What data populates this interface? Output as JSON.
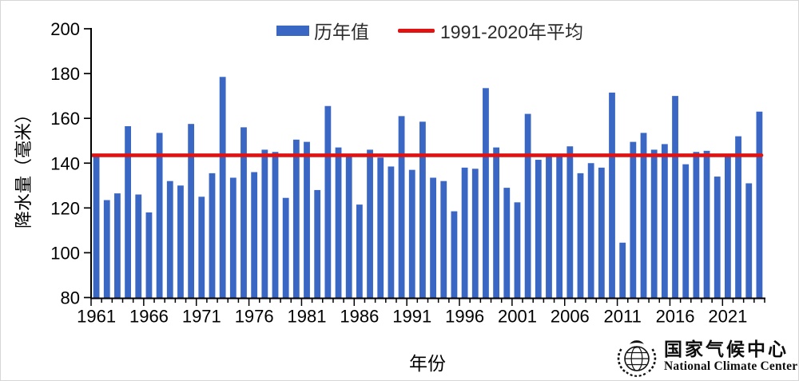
{
  "legend": {
    "series_label": "历年值",
    "average_label": "1991-2020年平均"
  },
  "footer_logo": {
    "cn": "国家气候中心",
    "en": "National Climate Center"
  },
  "chart_data": {
    "type": "bar",
    "title": "",
    "xlabel": "年份",
    "ylabel": "降水量（毫米）",
    "ylim": [
      80,
      200
    ],
    "y_ticks": [
      80,
      100,
      120,
      140,
      160,
      180,
      200
    ],
    "x_tick_label_years": [
      1961,
      1966,
      1971,
      1976,
      1981,
      1986,
      1991,
      1996,
      2001,
      2006,
      2011,
      2016,
      2021
    ],
    "grid": "off",
    "legend_position": "top",
    "series_name": "历年值",
    "years": [
      1961,
      1962,
      1963,
      1964,
      1965,
      1966,
      1967,
      1968,
      1969,
      1970,
      1971,
      1972,
      1973,
      1974,
      1975,
      1976,
      1977,
      1978,
      1979,
      1980,
      1981,
      1982,
      1983,
      1984,
      1985,
      1986,
      1987,
      1988,
      1989,
      1990,
      1991,
      1992,
      1993,
      1994,
      1995,
      1996,
      1997,
      1998,
      1999,
      2000,
      2001,
      2002,
      2003,
      2004,
      2005,
      2006,
      2007,
      2008,
      2009,
      2010,
      2011,
      2012,
      2013,
      2014,
      2015,
      2016,
      2017,
      2018,
      2019,
      2020,
      2021,
      2022,
      2023,
      2024
    ],
    "values": [
      143.5,
      123.5,
      126.5,
      156.5,
      126,
      118,
      153.5,
      132,
      130,
      157.5,
      125,
      135.5,
      178.5,
      133.5,
      156,
      136,
      146,
      145,
      124.5,
      150.5,
      149.5,
      128,
      165.5,
      147,
      143.5,
      121.5,
      146,
      142.5,
      138.5,
      161,
      137,
      158.5,
      133.5,
      132,
      118.5,
      138,
      137.5,
      173.5,
      147,
      129,
      122.5,
      162,
      141.5,
      143.5,
      143.5,
      147.5,
      135.5,
      140,
      138,
      171.5,
      104.5,
      149.5,
      153.5,
      146,
      148.5,
      170,
      139.5,
      145,
      145.5,
      134,
      143.5,
      152,
      131,
      163
    ],
    "average_line": {
      "label": "1991-2020年平均",
      "value": 143.5
    },
    "colors": {
      "bar": "#3a66c4",
      "average_line": "#e01212",
      "axis": "#000000",
      "text": "#000000"
    }
  }
}
